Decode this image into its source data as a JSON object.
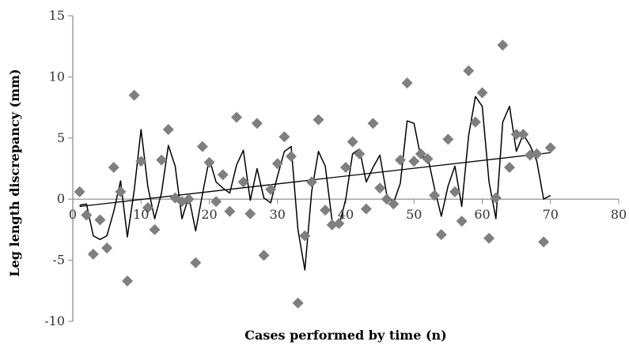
{
  "chart_data": {
    "type": "scatter",
    "title": "",
    "xlabel": "Cases performed by time (n)",
    "ylabel": "Leg length discrepancy (mm)",
    "xlim": [
      0,
      80
    ],
    "ylim": [
      -10,
      15
    ],
    "x_ticks": [
      0,
      10,
      20,
      30,
      40,
      50,
      60,
      70,
      80
    ],
    "y_ticks": [
      -10,
      -5,
      0,
      5,
      10,
      15
    ],
    "x_tick_labels": [
      "0",
      "10",
      "20",
      "30",
      "40",
      "50",
      "60",
      "70",
      "80"
    ],
    "y_tick_labels": [
      "-10",
      "-5",
      "0",
      "5",
      "10",
      "15"
    ],
    "grid": false,
    "legend": "none",
    "series": [
      {
        "kind": "scatter",
        "marker": "diamond",
        "color": "#7f7f7f",
        "x": [
          1,
          2,
          3,
          4,
          5,
          6,
          7,
          8,
          9,
          10,
          11,
          12,
          13,
          14,
          15,
          16,
          17,
          18,
          19,
          20,
          21,
          22,
          23,
          24,
          25,
          26,
          27,
          28,
          29,
          30,
          31,
          32,
          33,
          34,
          35,
          36,
          37,
          38,
          39,
          40,
          41,
          42,
          43,
          44,
          45,
          46,
          47,
          48,
          49,
          50,
          51,
          52,
          53,
          54,
          55,
          56,
          57,
          58,
          59,
          60,
          61,
          62,
          63,
          64,
          65,
          66,
          67,
          68,
          69,
          70
        ],
        "y": [
          0.6,
          -1.3,
          -4.5,
          -1.7,
          -4.0,
          2.6,
          0.6,
          -6.7,
          8.5,
          3.1,
          -0.7,
          -2.5,
          3.2,
          5.7,
          0.1,
          -0.2,
          0.0,
          -5.2,
          4.3,
          3.0,
          -0.2,
          2.0,
          -1.0,
          6.7,
          1.4,
          -1.2,
          6.2,
          -4.6,
          0.8,
          2.9,
          5.1,
          3.5,
          -8.5,
          -3.0,
          1.4,
          6.5,
          -0.9,
          -2.1,
          -2.0,
          2.6,
          4.7,
          3.7,
          -0.8,
          6.2,
          0.9,
          0.0,
          -0.4,
          3.2,
          9.5,
          3.1,
          3.7,
          3.3,
          0.3,
          -2.9,
          4.9,
          0.6,
          -1.8,
          10.5,
          6.3,
          8.7,
          -3.2,
          0.1,
          12.6,
          2.6,
          5.3,
          5.3,
          3.6,
          3.7,
          -3.5,
          4.2
        ]
      },
      {
        "kind": "line",
        "color": "#000000",
        "x": [
          1,
          2,
          3,
          4,
          5,
          6,
          7,
          8,
          9,
          10,
          11,
          12,
          13,
          14,
          15,
          16,
          17,
          18,
          19,
          20,
          21,
          22,
          23,
          24,
          25,
          26,
          27,
          28,
          29,
          30,
          31,
          32,
          33,
          34,
          35,
          36,
          37,
          38,
          39,
          40,
          41,
          42,
          43,
          44,
          45,
          46,
          47,
          48,
          49,
          50,
          51,
          52,
          53,
          54,
          55,
          56,
          57,
          58,
          59,
          60,
          61,
          62,
          63,
          64,
          65,
          66,
          67,
          68,
          69,
          70
        ],
        "y": [
          -0.5,
          -0.4,
          -3.0,
          -3.3,
          -3.0,
          -1.0,
          1.5,
          -3.1,
          0.7,
          5.7,
          1.0,
          -1.6,
          0.5,
          4.4,
          2.7,
          -1.6,
          0.2,
          -2.6,
          0.4,
          3.3,
          1.4,
          0.9,
          0.5,
          2.8,
          4.0,
          -0.1,
          2.5,
          0.1,
          -0.3,
          1.9,
          3.9,
          4.3,
          -2.5,
          -5.8,
          0.6,
          3.9,
          2.7,
          -1.8,
          -2.2,
          0.0,
          3.7,
          4.1,
          1.4,
          2.6,
          3.6,
          0.4,
          -0.3,
          1.3,
          6.4,
          6.2,
          3.4,
          3.5,
          0.9,
          -1.4,
          1.1,
          2.7,
          -0.6,
          5.2,
          8.4,
          7.6,
          1.4,
          -1.6,
          6.3,
          7.6,
          3.9,
          5.3,
          4.4,
          3.1,
          0.0,
          0.3
        ]
      },
      {
        "kind": "trendline",
        "color": "#000000",
        "x": [
          1,
          70
        ],
        "y": [
          -0.6,
          3.8
        ]
      }
    ]
  }
}
